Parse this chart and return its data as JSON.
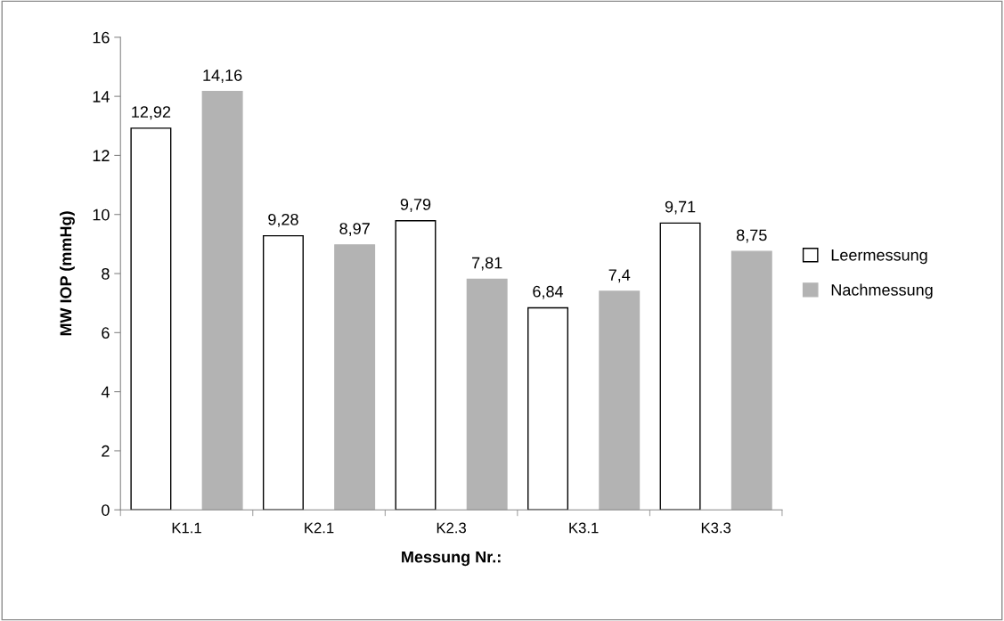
{
  "chart_data": {
    "type": "bar",
    "xlabel": "Messung Nr.:",
    "ylabel": "MW IOP (mmHg)",
    "categories": [
      "K1.1",
      "K2.1",
      "K2.3",
      "K3.1",
      "K3.3"
    ],
    "series": [
      {
        "name": "Leermessung",
        "color": "#ffffff",
        "values": [
          12.92,
          9.28,
          9.79,
          6.84,
          9.71
        ],
        "value_labels": [
          "12,92",
          "9,28",
          "9,79",
          "6,84",
          "9,71"
        ]
      },
      {
        "name": "Nachmessung",
        "color": "#b3b3b3",
        "values": [
          14.16,
          8.97,
          7.81,
          7.4,
          8.75
        ],
        "value_labels": [
          "14,16",
          "8,97",
          "7,81",
          "7,4",
          "8,75"
        ]
      }
    ],
    "ylim": [
      0,
      16
    ],
    "yticks": [
      0,
      2,
      4,
      6,
      8,
      10,
      12,
      14,
      16
    ],
    "grid": false,
    "legend": "right"
  }
}
